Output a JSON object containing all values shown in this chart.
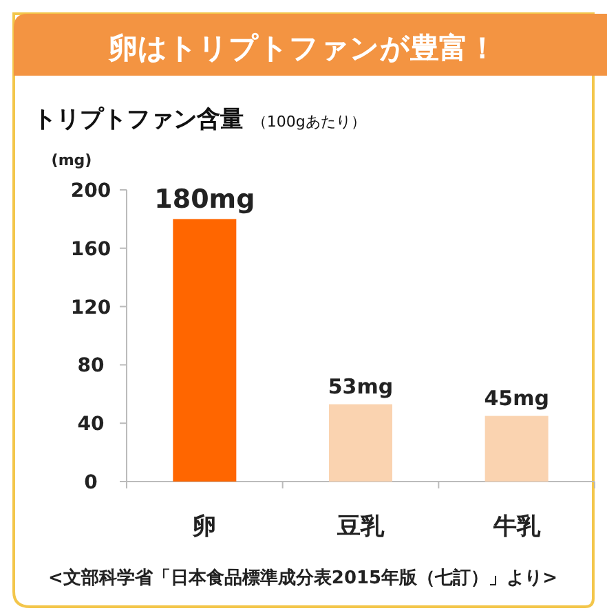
{
  "chart_data": {
    "type": "bar",
    "title": "卵はトリプトファンが豊富！",
    "subtitle": "トリプトファン含量 $_{（100gあたり）}$",
    "ylabel": "(mg)",
    "categories": [
      "卵",
      "豆乳",
      "牛乳"
    ],
    "values": [
      180,
      53,
      45
    ],
    "colors": [
      "#ff6600",
      "#fad3b0",
      "#fad3b0"
    ],
    "value_labels": [
      "180mg",
      "53mg",
      "45mg"
    ],
    "ylim": [
      0,
      200
    ],
    "yticks": [
      0,
      40,
      80,
      120,
      160,
      200
    ],
    "annotations": [
      "<文部科学省「日本食品標準成分表2015年版（七訂）」より>"
    ]
  }
}
